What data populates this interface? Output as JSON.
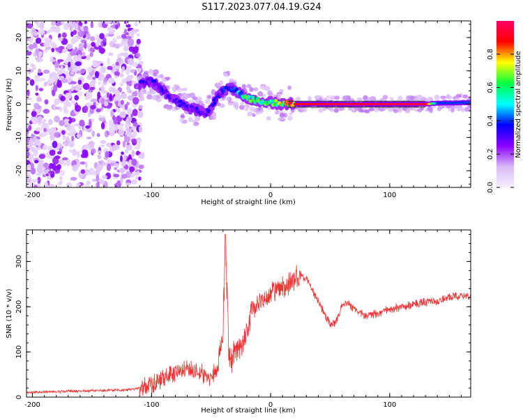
{
  "title": "S117.2023.077.04.19.G24",
  "chart_data": [
    {
      "type": "heatmap",
      "xlabel": "Height of straight line (km)",
      "ylabel": "Frequency (Hz)",
      "xlim": [
        -205,
        168
      ],
      "ylim": [
        -25,
        25
      ],
      "xticks": [
        -200,
        -100,
        0,
        100
      ],
      "yticks": [
        -20,
        -10,
        0,
        10,
        20
      ],
      "colorbar": {
        "label": "Normalized spectral amplitude",
        "range": [
          0,
          1
        ],
        "ticks": [
          0.0,
          0.2,
          0.4,
          0.6,
          0.8
        ],
        "colormap": [
          "#f5f0ff",
          "#d9b8f5",
          "#8a00ff",
          "#0000ff",
          "#00ffff",
          "#00ff40",
          "#ffff00",
          "#ff0000",
          "#ff0066"
        ]
      },
      "ridge": [
        {
          "x": -110,
          "freq": 6,
          "amp": 0.3
        },
        {
          "x": -100,
          "freq": 7,
          "amp": 0.35
        },
        {
          "x": -90,
          "freq": 4,
          "amp": 0.3
        },
        {
          "x": -80,
          "freq": 1,
          "amp": 0.3
        },
        {
          "x": -70,
          "freq": -1,
          "amp": 0.3
        },
        {
          "x": -60,
          "freq": -2,
          "amp": 0.3
        },
        {
          "x": -55,
          "freq": -3,
          "amp": 0.3
        },
        {
          "x": -50,
          "freq": -1,
          "amp": 0.3
        },
        {
          "x": -45,
          "freq": 2,
          "amp": 0.35
        },
        {
          "x": -40,
          "freq": 4,
          "amp": 0.35
        },
        {
          "x": -35,
          "freq": 5,
          "amp": 0.35
        },
        {
          "x": -30,
          "freq": 4,
          "amp": 0.4
        },
        {
          "x": -25,
          "freq": 3,
          "amp": 0.5
        },
        {
          "x": -20,
          "freq": 2,
          "amp": 0.6
        },
        {
          "x": -10,
          "freq": 1,
          "amp": 0.6
        },
        {
          "x": 0,
          "freq": 0.5,
          "amp": 0.65
        },
        {
          "x": 10,
          "freq": 0,
          "amp": 0.7
        },
        {
          "x": 20,
          "freq": 0,
          "amp": 0.9
        },
        {
          "x": 60,
          "freq": 0,
          "amp": 0.95
        },
        {
          "x": 100,
          "freq": 0,
          "amp": 0.95
        },
        {
          "x": 130,
          "freq": 0,
          "amp": 0.95
        },
        {
          "x": 140,
          "freq": 0.3,
          "amp": 0.4
        },
        {
          "x": 168,
          "freq": 0.5,
          "amp": 0.4
        }
      ],
      "noise_region": {
        "x_from": -205,
        "x_to": -108,
        "freq_from": -25,
        "freq_to": 25,
        "amp": 0.1
      }
    },
    {
      "type": "line",
      "xlabel": "Height of straight line (km)",
      "ylabel": "SNR (10 * v/v)",
      "xlim": [
        -205,
        168
      ],
      "ylim": [
        0,
        370
      ],
      "xticks": [
        -200,
        -100,
        0,
        100
      ],
      "yticks": [
        0,
        100,
        200,
        300
      ],
      "color": "#ee3333",
      "series": [
        {
          "x": -205,
          "y": 10
        },
        {
          "x": -180,
          "y": 12
        },
        {
          "x": -150,
          "y": 14
        },
        {
          "x": -120,
          "y": 16
        },
        {
          "x": -110,
          "y": 20
        },
        {
          "x": -100,
          "y": 28
        },
        {
          "x": -90,
          "y": 40
        },
        {
          "x": -80,
          "y": 55
        },
        {
          "x": -70,
          "y": 60
        },
        {
          "x": -60,
          "y": 55
        },
        {
          "x": -50,
          "y": 45
        },
        {
          "x": -45,
          "y": 60
        },
        {
          "x": -40,
          "y": 140
        },
        {
          "x": -38,
          "y": 360
        },
        {
          "x": -35,
          "y": 80
        },
        {
          "x": -30,
          "y": 100
        },
        {
          "x": -25,
          "y": 110
        },
        {
          "x": -20,
          "y": 140
        },
        {
          "x": -15,
          "y": 190
        },
        {
          "x": -10,
          "y": 205
        },
        {
          "x": -5,
          "y": 220
        },
        {
          "x": 0,
          "y": 230
        },
        {
          "x": 5,
          "y": 235
        },
        {
          "x": 10,
          "y": 240
        },
        {
          "x": 15,
          "y": 250
        },
        {
          "x": 20,
          "y": 262
        },
        {
          "x": 25,
          "y": 270
        },
        {
          "x": 30,
          "y": 262
        },
        {
          "x": 40,
          "y": 210
        },
        {
          "x": 50,
          "y": 160
        },
        {
          "x": 55,
          "y": 165
        },
        {
          "x": 60,
          "y": 200
        },
        {
          "x": 65,
          "y": 210
        },
        {
          "x": 70,
          "y": 195
        },
        {
          "x": 80,
          "y": 180
        },
        {
          "x": 90,
          "y": 185
        },
        {
          "x": 100,
          "y": 195
        },
        {
          "x": 110,
          "y": 200
        },
        {
          "x": 120,
          "y": 205
        },
        {
          "x": 130,
          "y": 210
        },
        {
          "x": 140,
          "y": 212
        },
        {
          "x": 150,
          "y": 220
        },
        {
          "x": 160,
          "y": 225
        },
        {
          "x": 168,
          "y": 220
        }
      ]
    }
  ]
}
